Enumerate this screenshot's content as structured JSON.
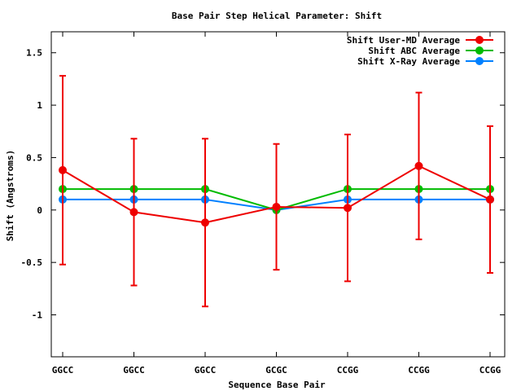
{
  "chart_data": {
    "type": "line",
    "title": "Base Pair Step Helical Parameter: Shift",
    "xlabel": "Sequence Base Pair",
    "ylabel": "Shift (Angstroms)",
    "categories": [
      "GGCC",
      "GGCC",
      "GGCC",
      "GCGC",
      "CCGG",
      "CCGG",
      "CCGG"
    ],
    "ylim": [
      -1.4,
      1.7
    ],
    "yticks": [
      -1,
      -0.5,
      0,
      0.5,
      1,
      1.5
    ],
    "ytick_labels": [
      "-1",
      "-0.5",
      "0",
      "0.5",
      "1",
      "1.5"
    ],
    "grid": false,
    "legend_position": "top-right",
    "series": [
      {
        "name": "Shift User-MD Average",
        "color": "#ee0000",
        "values": [
          0.38,
          -0.02,
          -0.12,
          0.03,
          0.02,
          0.42,
          0.1
        ],
        "error": [
          0.9,
          0.7,
          0.8,
          0.6,
          0.7,
          0.7,
          0.7
        ]
      },
      {
        "name": "Shift ABC Average",
        "color": "#00bb00",
        "values": [
          0.2,
          0.2,
          0.2,
          0.0,
          0.2,
          0.2,
          0.2
        ]
      },
      {
        "name": "Shift X-Ray Average",
        "color": "#0080ff",
        "values": [
          0.1,
          0.1,
          0.1,
          0.0,
          0.1,
          0.1,
          0.1
        ]
      }
    ]
  }
}
